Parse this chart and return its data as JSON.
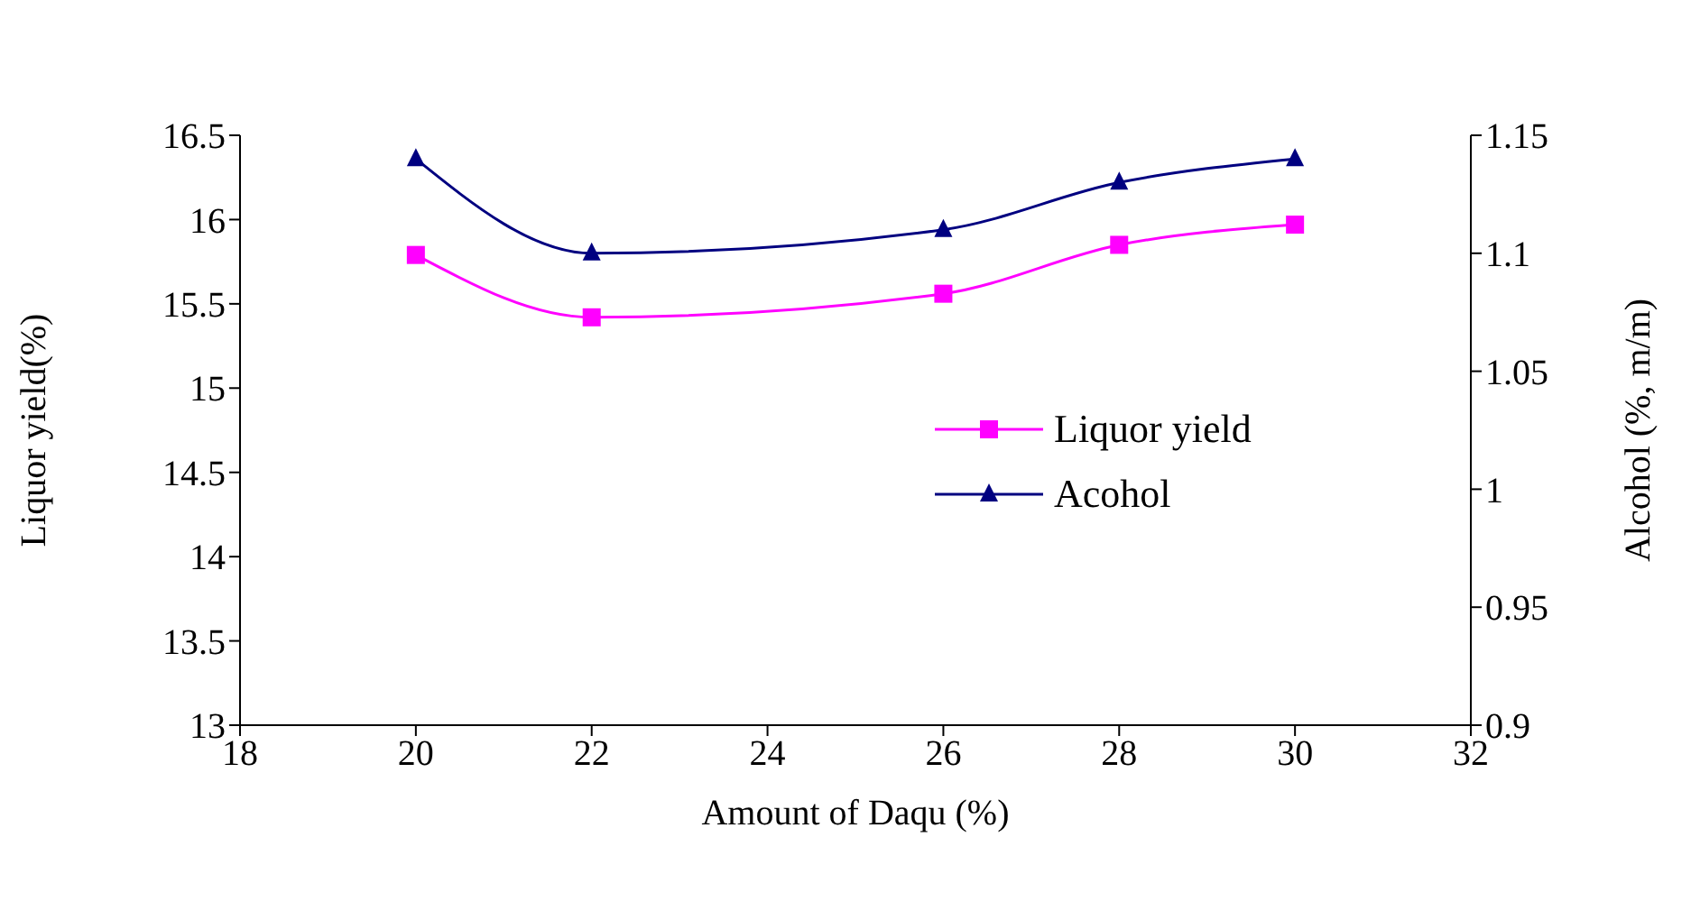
{
  "chart_data": {
    "type": "line",
    "xlabel": "Amount of Daqu  (%)",
    "ylabel": "Liquor yield(%)",
    "y2label": "Alcohol (%, m/m)",
    "x": [
      20,
      22,
      26,
      28,
      30
    ],
    "series": [
      {
        "name": "Liquor yield",
        "color": "#ff00ff",
        "values": [
          15.79,
          15.42,
          15.56,
          15.85,
          15.97
        ],
        "marker": "square"
      },
      {
        "name": "Acohol",
        "color": "#000080",
        "values": [
          1.14,
          1.1,
          1.11,
          1.13,
          1.14
        ],
        "marker": "triangle",
        "axis": "y2"
      }
    ],
    "xlim": [
      18,
      32
    ],
    "xticks": [
      18,
      20,
      22,
      24,
      26,
      28,
      30,
      32
    ],
    "ylim": [
      13,
      16.5
    ],
    "yticks": [
      13,
      13.5,
      14,
      14.5,
      15,
      15.5,
      16,
      16.5
    ],
    "y2lim": [
      0.9,
      1.15
    ],
    "y2ticks": [
      0.9,
      0.95,
      1,
      1.05,
      1.1,
      1.15
    ],
    "grid": false,
    "legend": "right"
  }
}
